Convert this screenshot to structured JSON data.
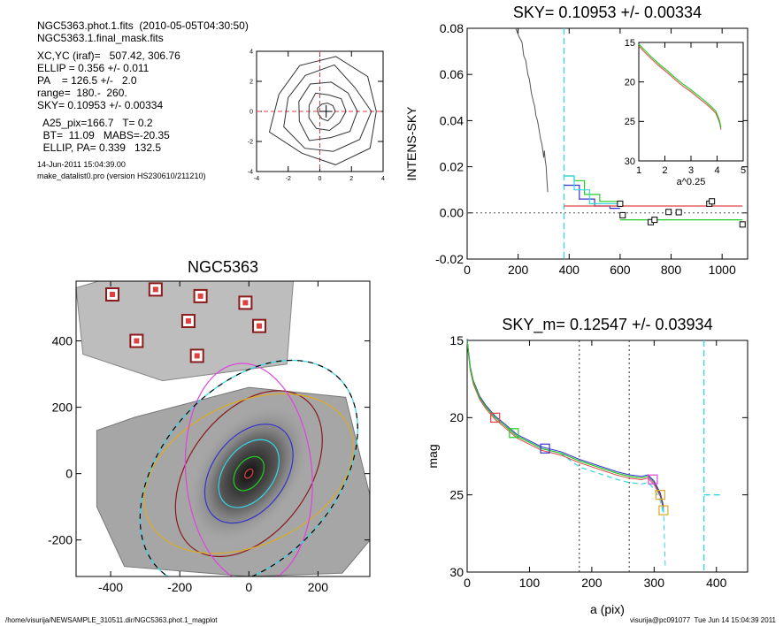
{
  "header": {
    "lines1": [
      "NGC5363.phot.1.fits  (2010-05-05T04:30:50)",
      "NGC5363.1.final_mask.fits"
    ],
    "lines2": [
      "XC,YC (iraf)=   507.42, 306.76",
      "ELLIP = 0.356 +/- 0.011",
      "PA    = 126.5 +/-   2.0",
      "range=  180.-  260.",
      "SKY= 0.10953 +/- 0.00334"
    ],
    "lines3": [
      "  A25_pix=166.7   T= 0.2",
      "  BT=  11.09   MABS=-20.35",
      "  ELLIP, PA= 0.339   132.5"
    ],
    "lines4": [
      "14-Jun-2011 15:04:39.00",
      "make_datalist0.pro (version HS230610/211210)"
    ]
  },
  "footer": {
    "left": "/home/visurija/NEWSAMPLE_310511.dir/NGC5363.phot.1_magplot",
    "right": "visurija@pc091077  Tue Jun 14 15:04:39 2011"
  },
  "colors": {
    "red": "#e04040",
    "green": "#22cc22",
    "blue": "#3333cc",
    "cyan": "#33d6e6",
    "magenta": "#dd44dd",
    "orange": "#ddaa22",
    "darkred": "#8b1a1a",
    "gray": "#555555"
  },
  "chart_data": [
    {
      "id": "contour",
      "type": "scatter",
      "title": "",
      "xlim": [
        -4,
        4
      ],
      "ylim": [
        -4,
        4
      ],
      "xticks": [
        "-4",
        "-2",
        "0",
        "2",
        "4"
      ],
      "yticks": [
        "-4",
        "-2",
        "0",
        "2",
        "4"
      ],
      "center": [
        0.4,
        0.0
      ],
      "contour_radii": [
        0.55,
        1.2,
        1.9,
        2.7,
        3.4
      ]
    },
    {
      "id": "sky",
      "type": "line",
      "title": "SKY= 0.10953 +/- 0.00334",
      "ylabel": "INTENS-SKY",
      "xlim": [
        0,
        1100
      ],
      "ylim": [
        -0.02,
        0.08
      ],
      "xticks": [
        "0",
        "200",
        "400",
        "600",
        "800",
        "1000"
      ],
      "yticks": [
        "-0.02",
        "0.00",
        "0.02",
        "0.04",
        "0.06",
        "0.08"
      ],
      "marker_line_x": 380,
      "profile": [
        [
          190,
          0.08
        ],
        [
          205,
          0.076
        ],
        [
          215,
          0.074
        ],
        [
          222,
          0.068
        ],
        [
          230,
          0.066
        ],
        [
          238,
          0.06
        ],
        [
          244,
          0.058
        ],
        [
          252,
          0.052
        ],
        [
          258,
          0.049
        ],
        [
          265,
          0.046
        ],
        [
          270,
          0.042
        ],
        [
          276,
          0.04
        ],
        [
          282,
          0.036
        ],
        [
          288,
          0.032
        ],
        [
          293,
          0.03
        ],
        [
          298,
          0.026
        ],
        [
          300,
          0.024
        ],
        [
          303,
          0.027
        ],
        [
          306,
          0.023
        ],
        [
          310,
          0.02
        ],
        [
          313,
          0.014
        ],
        [
          316,
          0.009
        ]
      ],
      "squares": [
        [
          600,
          0.004
        ],
        [
          610,
          -0.001
        ],
        [
          720,
          -0.004
        ],
        [
          735,
          -0.003
        ],
        [
          790,
          0.0004
        ],
        [
          830,
          0.0003
        ],
        [
          950,
          0.004
        ],
        [
          960,
          0.005
        ],
        [
          1080,
          -0.005
        ]
      ],
      "hlines": [
        {
          "color": "red",
          "y": 0.003,
          "x0": 380,
          "x1": 1080
        },
        {
          "color": "green",
          "y": -0.003,
          "x0": 600,
          "x1": 1080
        },
        {
          "color": "black",
          "y": 0.0,
          "x0": 600,
          "x1": 1080
        }
      ],
      "steps": [
        {
          "color": "blue",
          "pts": [
            [
              380,
              0.012
            ],
            [
              440,
              0.012
            ],
            [
              440,
              0.006
            ],
            [
              500,
              0.006
            ],
            [
              500,
              0.003
            ],
            [
              560,
              0.003
            ],
            [
              560,
              0.002
            ],
            [
              600,
              0.002
            ]
          ]
        },
        {
          "color": "green",
          "pts": [
            [
              380,
              0.016
            ],
            [
              420,
              0.016
            ],
            [
              420,
              0.014
            ],
            [
              460,
              0.014
            ],
            [
              460,
              0.008
            ],
            [
              520,
              0.008
            ],
            [
              520,
              0.005
            ],
            [
              600,
              0.005
            ]
          ]
        },
        {
          "color": "cyan",
          "pts": [
            [
              380,
              0.016
            ],
            [
              420,
              0.016
            ],
            [
              420,
              0.01
            ],
            [
              480,
              0.01
            ],
            [
              480,
              0.004
            ],
            [
              600,
              0.004
            ]
          ]
        }
      ]
    },
    {
      "id": "inset",
      "type": "line",
      "title": "",
      "xlabel": "a^0.25",
      "xlim": [
        1,
        5
      ],
      "ylim": [
        15,
        30
      ],
      "xticks": [
        "1",
        "2",
        "3",
        "4",
        "5"
      ],
      "yticks": [
        "15",
        "20",
        "25",
        "30"
      ],
      "x": [
        1.0,
        1.2,
        1.5,
        1.8,
        2.1,
        2.4,
        2.7,
        3.0,
        3.3,
        3.6,
        3.8,
        3.95,
        4.05,
        4.1,
        4.15
      ],
      "y": [
        15.2,
        15.9,
        16.9,
        17.8,
        18.6,
        19.5,
        20.3,
        21.0,
        21.8,
        22.6,
        23.2,
        23.7,
        24.5,
        25.0,
        25.8
      ]
    },
    {
      "id": "image",
      "type": "scatter",
      "title": "NGC5363",
      "xlim": [
        -500,
        350
      ],
      "ylim": [
        -310,
        580
      ],
      "xticks": [
        "-400",
        "-200",
        "0",
        "200"
      ],
      "yticks": [
        "-200",
        "0",
        "200",
        "400"
      ],
      "xtick_values": [
        -400,
        -200,
        0,
        200
      ],
      "ytick_values": [
        -200,
        0,
        200,
        400
      ],
      "stars": [
        [
          -395,
          540
        ],
        [
          -270,
          555
        ],
        [
          -140,
          535
        ],
        [
          -10,
          515
        ],
        [
          -175,
          460
        ],
        [
          30,
          445
        ],
        [
          -325,
          400
        ],
        [
          -150,
          355
        ]
      ],
      "ellipses": [
        {
          "color": "red",
          "a": 15,
          "b": 10,
          "pa": 126.5
        },
        {
          "color": "green",
          "a": 55,
          "b": 38,
          "pa": 126.5
        },
        {
          "color": "cyan",
          "a": 110,
          "b": 75,
          "pa": 126.5
        },
        {
          "color": "blue",
          "a": 160,
          "b": 110,
          "pa": 126.5
        },
        {
          "color": "darkred",
          "a": 270,
          "b": 180,
          "pa": 126.5
        },
        {
          "color": "orange",
          "a": 320,
          "b": 215,
          "pa": 155
        },
        {
          "color": "magenta",
          "a": 320,
          "b": 190,
          "pa": 85
        },
        {
          "color": "cyan",
          "a": 380,
          "b": 260,
          "pa": 132
        },
        {
          "color": "black",
          "a": 380,
          "b": 260,
          "pa": 132
        }
      ]
    },
    {
      "id": "mag",
      "type": "line",
      "title": "SKY_m=  0.12547 +/- 0.03934",
      "xlabel": "a (pix)",
      "ylabel": "mag",
      "xlim": [
        0,
        450
      ],
      "ylim": [
        15,
        30
      ],
      "xticks": [
        "0",
        "100",
        "200",
        "300",
        "400"
      ],
      "yticks": [
        "15",
        "20",
        "25",
        "30"
      ],
      "vlines_dotted": [
        180,
        260
      ],
      "cyan_vline_x": 380,
      "x": [
        0,
        5,
        10,
        20,
        30,
        45,
        60,
        80,
        100,
        120,
        150,
        180,
        210,
        240,
        260,
        280,
        290,
        295,
        300,
        305,
        310,
        315
      ],
      "y": [
        15.0,
        16.8,
        17.7,
        18.7,
        19.3,
        20.0,
        20.5,
        21.2,
        21.6,
        22.0,
        22.3,
        22.8,
        23.2,
        23.6,
        23.8,
        23.9,
        23.8,
        24.0,
        24.2,
        24.6,
        25.0,
        25.8
      ],
      "squares": [
        {
          "x": 45,
          "y": 20.0,
          "color": "red"
        },
        {
          "x": 75,
          "y": 21.0,
          "color": "green"
        },
        {
          "x": 125,
          "y": 22.0,
          "color": "blue"
        },
        {
          "x": 298,
          "y": 24.0,
          "color": "magenta"
        },
        {
          "x": 310,
          "y": 25.0,
          "color": "orange"
        },
        {
          "x": 315,
          "y": 26.0,
          "color": "orange"
        }
      ]
    }
  ]
}
